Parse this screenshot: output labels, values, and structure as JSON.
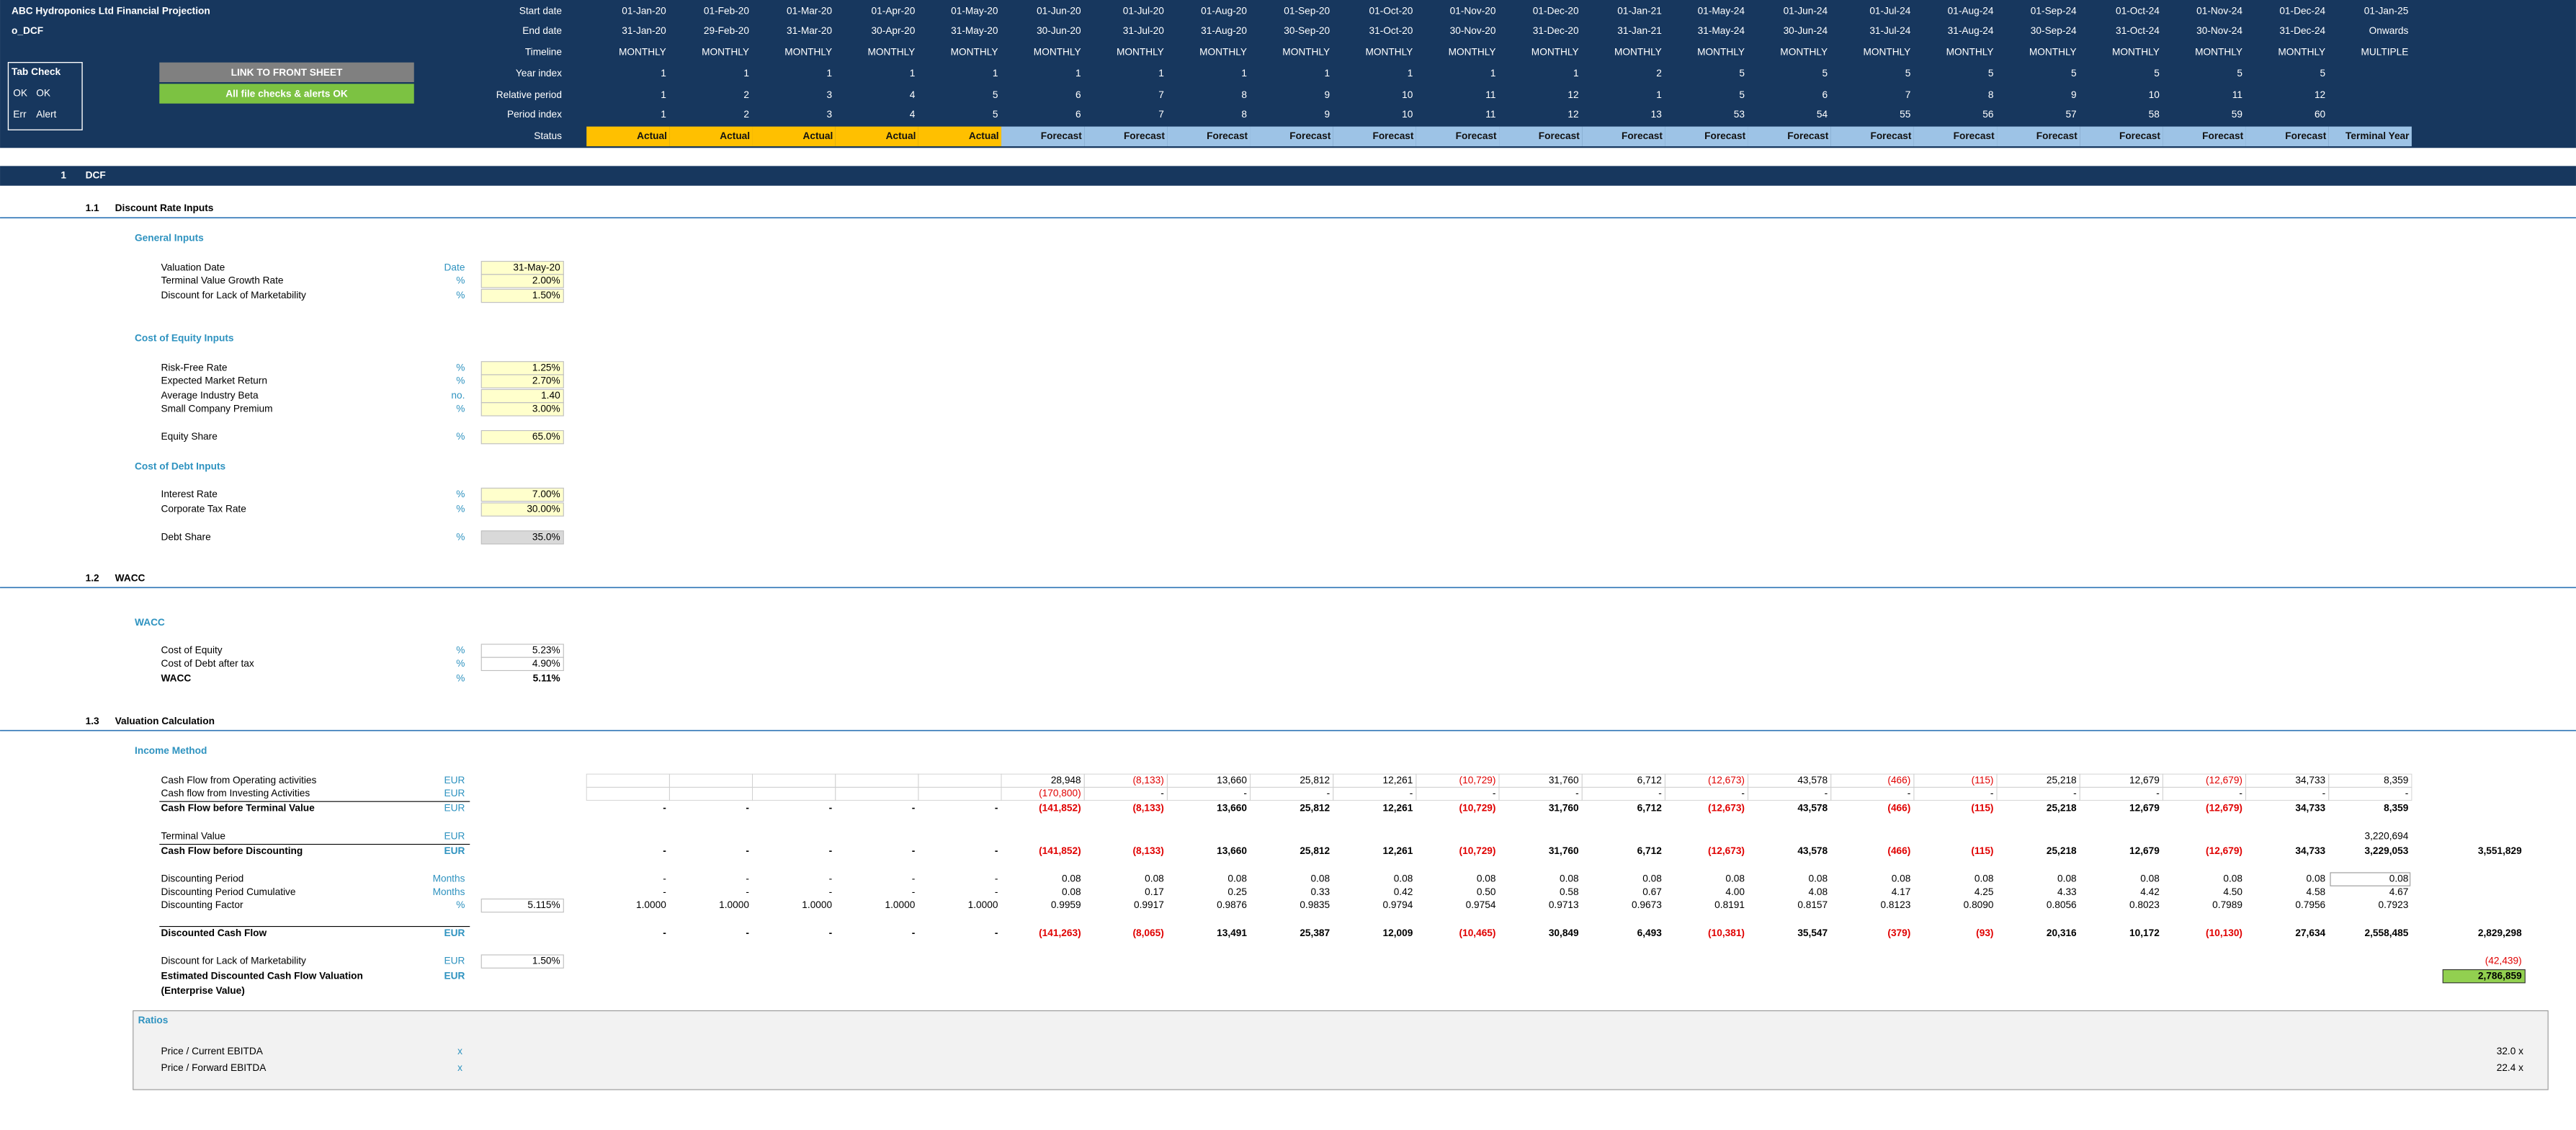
{
  "header": {
    "title": "ABC Hydroponics Ltd Financial Projection",
    "sheet": "o_DCF",
    "tab_check": {
      "title": "Tab Check",
      "rows": [
        [
          "OK",
          "OK"
        ],
        [
          "Err",
          "Alert"
        ]
      ]
    },
    "link_button": "LINK TO FRONT SHEET",
    "status_button": "All file checks & alerts OK"
  },
  "timeline": [
    {
      "label": "Start date",
      "cells": [
        "01-Jan-20",
        "01-Feb-20",
        "01-Mar-20",
        "01-Apr-20",
        "01-May-20",
        "01-Jun-20",
        "01-Jul-20",
        "01-Aug-20",
        "01-Sep-20",
        "01-Oct-20",
        "01-Nov-20",
        "01-Dec-20",
        "01-Jan-21",
        "01-May-24",
        "01-Jun-24",
        "01-Jul-24",
        "01-Aug-24",
        "01-Sep-24",
        "01-Oct-24",
        "01-Nov-24",
        "01-Dec-24",
        "01-Jan-25"
      ]
    },
    {
      "label": "End date",
      "cells": [
        "31-Jan-20",
        "29-Feb-20",
        "31-Mar-20",
        "30-Apr-20",
        "31-May-20",
        "30-Jun-20",
        "31-Jul-20",
        "31-Aug-20",
        "30-Sep-20",
        "31-Oct-20",
        "30-Nov-20",
        "31-Dec-20",
        "31-Jan-21",
        "31-May-24",
        "30-Jun-24",
        "31-Jul-24",
        "31-Aug-24",
        "30-Sep-24",
        "31-Oct-24",
        "30-Nov-24",
        "31-Dec-24",
        "Onwards"
      ]
    },
    {
      "label": "Timeline",
      "cells": [
        "MONTHLY",
        "MONTHLY",
        "MONTHLY",
        "MONTHLY",
        "MONTHLY",
        "MONTHLY",
        "MONTHLY",
        "MONTHLY",
        "MONTHLY",
        "MONTHLY",
        "MONTHLY",
        "MONTHLY",
        "MONTHLY",
        "MONTHLY",
        "MONTHLY",
        "MONTHLY",
        "MONTHLY",
        "MONTHLY",
        "MONTHLY",
        "MONTHLY",
        "MONTHLY",
        "MULTIPLE"
      ]
    },
    {
      "label": "Year index",
      "cells": [
        1,
        1,
        1,
        1,
        1,
        1,
        1,
        1,
        1,
        1,
        1,
        1,
        2,
        5,
        5,
        5,
        5,
        5,
        5,
        5,
        5,
        null
      ]
    },
    {
      "label": "Relative period",
      "cells": [
        1,
        2,
        3,
        4,
        5,
        6,
        7,
        8,
        9,
        10,
        11,
        12,
        1,
        5,
        6,
        7,
        8,
        9,
        10,
        11,
        12,
        null
      ]
    },
    {
      "label": "Period index",
      "cells": [
        1,
        2,
        3,
        4,
        5,
        6,
        7,
        8,
        9,
        10,
        11,
        12,
        13,
        53,
        54,
        55,
        56,
        57,
        58,
        59,
        60,
        null
      ]
    },
    {
      "label": "Status",
      "cells": [
        "Actual",
        "Actual",
        "Actual",
        "Actual",
        "Actual",
        "Forecast",
        "Forecast",
        "Forecast",
        "Forecast",
        "Forecast",
        "Forecast",
        "Forecast",
        "Forecast",
        "Forecast",
        "Forecast",
        "Forecast",
        "Forecast",
        "Forecast",
        "Forecast",
        "Forecast",
        "Forecast",
        "Terminal Year"
      ]
    }
  ],
  "sections": [
    {
      "number": "1",
      "title": "DCF",
      "subsections": [
        {
          "number": "1.1",
          "title": "Discount Rate Inputs",
          "groups": [
            {
              "title": "General Inputs",
              "rows": [
                {
                  "label": "Valuation Date",
                  "unit": "Date",
                  "input": "31-May-20"
                },
                {
                  "label": "Terminal Value Growth Rate",
                  "unit": "%",
                  "input": "2.00%"
                },
                {
                  "label": "Discount for Lack of Marketability",
                  "unit": "%",
                  "input": "1.50%"
                }
              ]
            },
            {
              "title": "Cost of Equity Inputs",
              "rows": [
                {
                  "label": "Risk-Free Rate",
                  "unit": "%",
                  "input": "1.25%"
                },
                {
                  "label": "Expected Market Return",
                  "unit": "%",
                  "input": "2.70%"
                },
                {
                  "label": "Average Industry Beta",
                  "unit": "no.",
                  "input": "1.40"
                },
                {
                  "label": "Small Company Premium",
                  "unit": "%",
                  "input": "3.00%"
                },
                {
                  "label": "Equity Share",
                  "unit": "%",
                  "input": "65.0%"
                }
              ]
            },
            {
              "title": "Cost of Debt Inputs",
              "rows": [
                {
                  "label": "Interest Rate",
                  "unit": "%",
                  "input": "7.00%"
                },
                {
                  "label": "Corporate Tax Rate",
                  "unit": "%",
                  "input": "30.00%"
                },
                {
                  "label": "Debt Share",
                  "unit": "%",
                  "calc": "35.0%"
                }
              ]
            }
          ]
        },
        {
          "number": "1.2",
          "title": "WACC",
          "groups": [
            {
              "title": "WACC",
              "rows": [
                {
                  "label": "Cost of Equity",
                  "unit": "%",
                  "value": "5.23%"
                },
                {
                  "label": "Cost of Debt after tax",
                  "unit": "%",
                  "value": "4.90%"
                },
                {
                  "label": "WACC",
                  "unit": "%",
                  "value": "5.11%",
                  "bold": true
                }
              ]
            }
          ]
        },
        {
          "number": "1.3",
          "title": "Valuation Calculation",
          "groups": [
            {
              "title": "Income Method",
              "rows": [
                {
                  "label": "Cash Flow from Operating activities",
                  "unit": "EUR",
                  "cells": [
                    null,
                    null,
                    null,
                    null,
                    null,
                    "28,948",
                    "(8,133)",
                    "13,660",
                    "25,812",
                    "12,261",
                    "(10,729)",
                    "31,760",
                    "6,712",
                    "(12,673)",
                    "43,578",
                    "(466)",
                    "(115)",
                    "25,218",
                    "12,679",
                    "(12,679)",
                    "34,733",
                    "8,359"
                  ]
                },
                {
                  "label": "Cash flow from Investing Activities",
                  "unit": "EUR",
                  "cells": [
                    null,
                    null,
                    null,
                    null,
                    null,
                    "(170,800)",
                    "-",
                    "-",
                    "-",
                    "-",
                    "-",
                    "-",
                    "-",
                    "-",
                    "-",
                    "-",
                    "-",
                    "-",
                    "-",
                    "-",
                    "-",
                    "-"
                  ]
                },
                {
                  "label": "Cash Flow before Terminal Value",
                  "unit": "EUR",
                  "bold": true,
                  "cells": [
                    "-",
                    "-",
                    "-",
                    "-",
                    "-",
                    "(141,852)",
                    "(8,133)",
                    "13,660",
                    "25,812",
                    "12,261",
                    "(10,729)",
                    "31,760",
                    "6,712",
                    "(12,673)",
                    "43,578",
                    "(466)",
                    "(115)",
                    "25,218",
                    "12,679",
                    "(12,679)",
                    "34,733",
                    "8,359"
                  ]
                },
                {
                  "label": "Terminal Value",
                  "unit": "EUR",
                  "cells": [
                    null,
                    null,
                    null,
                    null,
                    null,
                    null,
                    null,
                    null,
                    null,
                    null,
                    null,
                    null,
                    null,
                    null,
                    null,
                    null,
                    null,
                    null,
                    null,
                    null,
                    null,
                    "3,220,694"
                  ]
                },
                {
                  "label": "Cash Flow before Discounting",
                  "unit": "EUR",
                  "bold": true,
                  "cells": [
                    "-",
                    "-",
                    "-",
                    "-",
                    "-",
                    "(141,852)",
                    "(8,133)",
                    "13,660",
                    "25,812",
                    "12,261",
                    "(10,729)",
                    "31,760",
                    "6,712",
                    "(12,673)",
                    "43,578",
                    "(466)",
                    "(115)",
                    "25,218",
                    "12,679",
                    "(12,679)",
                    "34,733",
                    "3,229,053"
                  ],
                  "total": "3,551,829"
                },
                {
                  "label": "Discounting Period",
                  "unit": "Months",
                  "cells": [
                    "-",
                    "-",
                    "-",
                    "-",
                    "-",
                    "0.08",
                    "0.08",
                    "0.08",
                    "0.08",
                    "0.08",
                    "0.08",
                    "0.08",
                    "0.08",
                    "0.08",
                    "0.08",
                    "0.08",
                    "0.08",
                    "0.08",
                    "0.08",
                    "0.08",
                    "0.08",
                    "0.08"
                  ]
                },
                {
                  "label": "Discounting Period Cumulative",
                  "unit": "Months",
                  "cells": [
                    "-",
                    "-",
                    "-",
                    "-",
                    "-",
                    "0.08",
                    "0.17",
                    "0.25",
                    "0.33",
                    "0.42",
                    "0.50",
                    "0.58",
                    "0.67",
                    "4.00",
                    "4.08",
                    "4.17",
                    "4.25",
                    "4.33",
                    "4.42",
                    "4.50",
                    "4.58",
                    "4.67"
                  ]
                },
                {
                  "label": "Discounting Factor",
                  "unit": "%",
                  "input": "5.115%",
                  "cells": [
                    "1.0000",
                    "1.0000",
                    "1.0000",
                    "1.0000",
                    "1.0000",
                    "0.9959",
                    "0.9917",
                    "0.9876",
                    "0.9835",
                    "0.9794",
                    "0.9754",
                    "0.9713",
                    "0.9673",
                    "0.8191",
                    "0.8157",
                    "0.8123",
                    "0.8090",
                    "0.8056",
                    "0.8023",
                    "0.7989",
                    "0.7956",
                    "0.7923"
                  ]
                },
                {
                  "label": "Discounted Cash Flow",
                  "unit": "EUR",
                  "bold": true,
                  "cells": [
                    "-",
                    "-",
                    "-",
                    "-",
                    "-",
                    "(141,263)",
                    "(8,065)",
                    "13,491",
                    "25,387",
                    "12,009",
                    "(10,465)",
                    "30,849",
                    "6,493",
                    "(10,381)",
                    "35,547",
                    "(379)",
                    "(93)",
                    "20,316",
                    "10,172",
                    "(10,130)",
                    "27,634",
                    "2,558,485"
                  ],
                  "total": "2,829,298"
                },
                {
                  "label": "Discount for Lack of Marketability",
                  "unit": "EUR",
                  "input": "1.50%",
                  "total": "(42,439)"
                },
                {
                  "label": "Estimated Discounted Cash Flow Valuation",
                  "sublabel": "(Enterprise Value)",
                  "unit": "EUR",
                  "bold": true,
                  "total": "2,786,859"
                }
              ]
            }
          ]
        }
      ]
    }
  ],
  "ratios": {
    "title": "Ratios",
    "rows": [
      {
        "label": "Price / Current EBITDA",
        "unit": "x",
        "value": "32.0 x"
      },
      {
        "label": "Price / Forward EBITDA",
        "unit": "x",
        "value": "22.4 x"
      }
    ]
  }
}
